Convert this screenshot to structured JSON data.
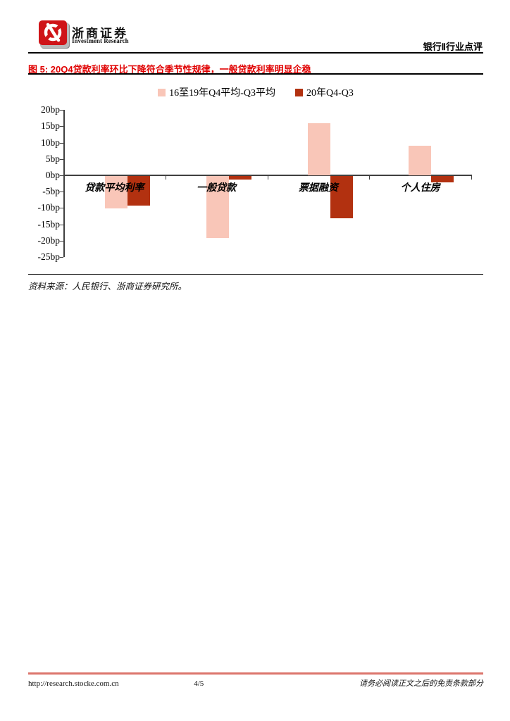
{
  "brand": {
    "name_cn": "浙商证券",
    "name_en": "Investment Research"
  },
  "header": {
    "right_title": "银行Ⅱ行业点评"
  },
  "figure": {
    "caption": "图 5: 20Q4贷款利率环比下降符合季节性规律，一般贷款利率明显企稳"
  },
  "source_note": "资料来源：人民银行、浙商证券研究所。",
  "footer": {
    "url": "http://research.stocke.com.cn",
    "page_no": "4/5",
    "disclaimer": "请务必阅读正文之后的免责条款部分"
  },
  "colors": {
    "caption_red": "#e00000",
    "series1_pink": "#f9c6b8",
    "series2_dark_red": "#b23110",
    "footer_line": "#dc756c",
    "logo_red": "#cf1418"
  },
  "chart_data": {
    "type": "bar",
    "title": "",
    "unit": "bp",
    "categories": [
      "贷款平均利率",
      "一般贷款",
      "票据融资",
      "个人住房"
    ],
    "series": [
      {
        "name": "16至19年Q4平均-Q3平均",
        "color": "#f9c6b8",
        "values": [
          -10,
          -19,
          16,
          9
        ]
      },
      {
        "name": "20年Q4-Q3",
        "color": "#b23110",
        "values": [
          -9,
          -1,
          -13,
          -2
        ]
      }
    ],
    "ylim": [
      -25,
      20
    ],
    "yticks": [
      {
        "value": 20,
        "label": "20bp"
      },
      {
        "value": 15,
        "label": "15bp"
      },
      {
        "value": 10,
        "label": "10bp"
      },
      {
        "value": 5,
        "label": "5bp"
      },
      {
        "value": 0,
        "label": "0bp"
      },
      {
        "value": -5,
        "label": "-5bp"
      },
      {
        "value": -10,
        "label": "-10bp"
      },
      {
        "value": -15,
        "label": "-15bp"
      },
      {
        "value": -20,
        "label": "-20bp"
      },
      {
        "value": -25,
        "label": "-25bp"
      }
    ],
    "grid": false,
    "legend_position": "top"
  }
}
